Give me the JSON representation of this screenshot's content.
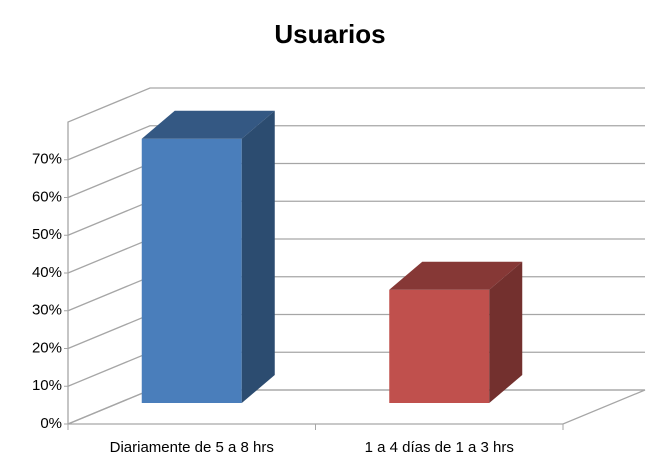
{
  "chart_data": {
    "type": "bar3d",
    "title": "Usuarios",
    "categories": [
      "Diariamente de 5 a 8 hrs",
      "1 a 4 días de 1 a 3 hrs"
    ],
    "series": [
      {
        "name": null,
        "colors": [
          "#4a7ebb",
          "#c0504d"
        ],
        "values": [
          70,
          30
        ]
      }
    ],
    "ylim": [
      0,
      80
    ],
    "yticks": [
      {
        "value": 0,
        "label": "0%"
      },
      {
        "value": 10,
        "label": "10%"
      },
      {
        "value": 20,
        "label": "20%"
      },
      {
        "value": 30,
        "label": "30%"
      },
      {
        "value": 40,
        "label": "40%"
      },
      {
        "value": 50,
        "label": "50%"
      },
      {
        "value": 60,
        "label": "60%"
      },
      {
        "value": 70,
        "label": "70%"
      }
    ],
    "grid": true
  }
}
